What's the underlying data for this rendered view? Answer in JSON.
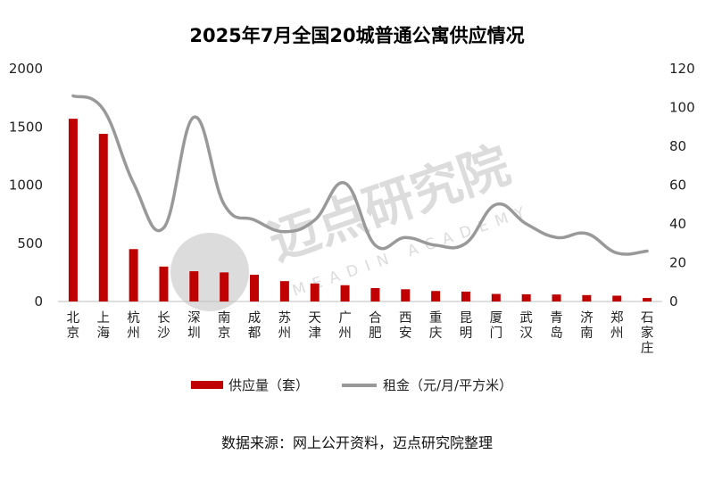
{
  "chart_data": {
    "type": "bar",
    "title": "2025年7月全国20城普通公寓供应情况",
    "categories": [
      "北京",
      "上海",
      "杭州",
      "长沙",
      "深圳",
      "南京",
      "成都",
      "苏州",
      "天津",
      "广州",
      "合肥",
      "西安",
      "重庆",
      "昆明",
      "厦门",
      "武汉",
      "青岛",
      "济南",
      "郑州",
      "石家庄"
    ],
    "series": [
      {
        "name": "供应量（套）",
        "type": "bar",
        "axis": "left",
        "color": "#c00000",
        "values": [
          1570,
          1440,
          450,
          300,
          260,
          250,
          230,
          175,
          155,
          140,
          115,
          105,
          90,
          85,
          65,
          62,
          60,
          55,
          50,
          30
        ]
      },
      {
        "name": "租金（元/月/平方米）",
        "type": "line",
        "axis": "right",
        "color": "#999999",
        "values": [
          106,
          99,
          61,
          38,
          95,
          50,
          42,
          36,
          42,
          61,
          29,
          33,
          29,
          30,
          50,
          40,
          33,
          35,
          25,
          26
        ]
      }
    ],
    "y_left": {
      "range": [
        0,
        2000
      ],
      "ticks": [
        "0",
        "500",
        "1000",
        "1500",
        "2000"
      ]
    },
    "y_right": {
      "range": [
        0,
        120
      ],
      "ticks": [
        "0",
        "20",
        "40",
        "60",
        "80",
        "100",
        "120"
      ]
    },
    "legend_position": "bottom",
    "grid": false
  },
  "source_note": "数据来源：网上公开资料，迈点研究院整理",
  "watermark": {
    "cn": "迈点研究院",
    "en": "MEADIN ACADEMY",
    "color": "#dcdcdc"
  }
}
